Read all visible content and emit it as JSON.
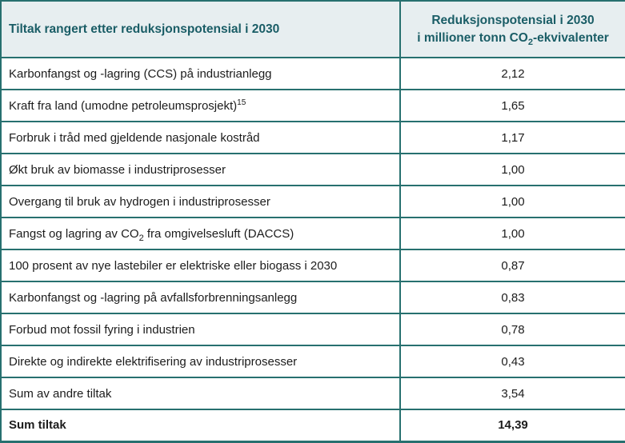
{
  "table": {
    "header": {
      "col1": "Tiltak rangert etter reduksjonspotensial i 2030",
      "col2_line1": "Reduksjonspotensial i 2030",
      "col2_line2": "i millioner tonn CO₂-ekvivalenter"
    },
    "rows": [
      {
        "tiltak": "Karbonfangst og -lagring (CCS) på industrianlegg",
        "verdi": "2,12"
      },
      {
        "tiltak": "Kraft fra land (umodne petroleumsprosjekt)¹⁵",
        "verdi": "1,65"
      },
      {
        "tiltak": "Forbruk i tråd med gjeldende nasjonale kostråd",
        "verdi": "1,17"
      },
      {
        "tiltak": "Økt bruk av biomasse i industriprosesser",
        "verdi": "1,00"
      },
      {
        "tiltak": "Overgang til bruk av hydrogen i industriprosesser",
        "verdi": "1,00"
      },
      {
        "tiltak": "Fangst og lagring av CO₂ fra omgivelsesluft (DACCS)",
        "verdi": "1,00"
      },
      {
        "tiltak": "100 prosent av nye lastebiler er elektriske eller biogass i 2030",
        "verdi": "0,87"
      },
      {
        "tiltak": "Karbonfangst og -lagring på avfallsforbrenningsanlegg",
        "verdi": "0,83"
      },
      {
        "tiltak": "Forbud mot fossil fyring i industrien",
        "verdi": "0,78"
      },
      {
        "tiltak": "Direkte og indirekte elektrifisering av industriprosesser",
        "verdi": "0,43"
      },
      {
        "tiltak": "Sum av andre tiltak",
        "verdi": "3,54"
      },
      {
        "tiltak": "Sum tiltak",
        "verdi": "14,39",
        "bold": true
      }
    ],
    "colors": {
      "border": "#27706f",
      "header_bg": "#e7eef0",
      "header_text": "#1a5d66",
      "body_text": "#1c1c1c"
    }
  }
}
